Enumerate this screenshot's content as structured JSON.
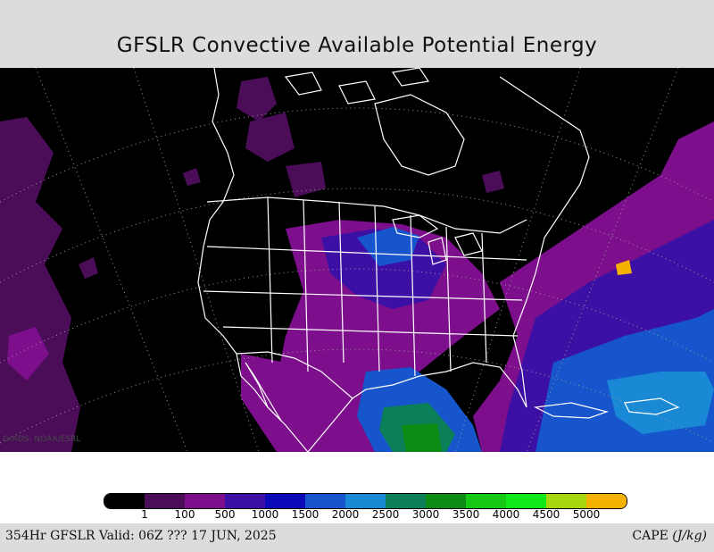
{
  "title": "GFSLR Convective Available Potential Energy",
  "watermark": "GrADS: NOAA/ESRL",
  "footer": {
    "valid_text": "354Hr GFSLR Valid: 06Z ??? 17 JUN, 2025",
    "units_label": "CAPE",
    "units_value": "(J/kg)"
  },
  "legend": {
    "colors": [
      "#000000",
      "#4b0d58",
      "#7d0e8c",
      "#3d10a5",
      "#0b0ab8",
      "#1655cc",
      "#1989d5",
      "#0b7f57",
      "#0c8a14",
      "#14c814",
      "#11e81a",
      "#a8d60c",
      "#f5b100"
    ],
    "labels": [
      "1",
      "100",
      "500",
      "1000",
      "1500",
      "2000",
      "2500",
      "3000",
      "3500",
      "4000",
      "4500",
      "5000"
    ]
  },
  "map": {
    "background": "#000000",
    "graticule_color": "#9a9a9a",
    "boundary_color": "#ffffff"
  }
}
